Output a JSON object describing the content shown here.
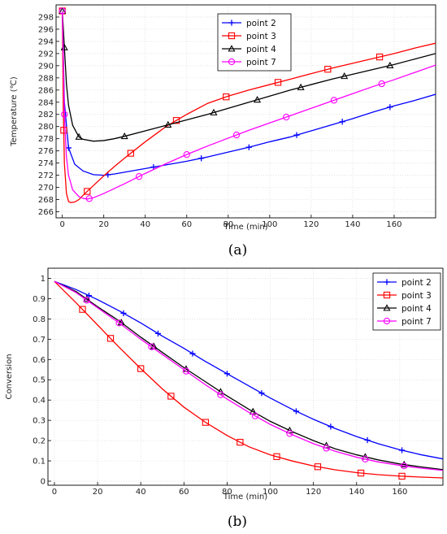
{
  "chart_data": [
    {
      "type": "line",
      "panel_label": "(a)",
      "xlabel": "Time (min)",
      "ylabel": "Temperature (℃)",
      "xlim": [
        -3,
        180
      ],
      "ylim": [
        265,
        300
      ],
      "xticks": [
        0,
        20,
        40,
        60,
        80,
        100,
        120,
        140,
        160
      ],
      "yticks": [
        266,
        268,
        270,
        272,
        274,
        276,
        278,
        280,
        282,
        284,
        286,
        288,
        290,
        292,
        294,
        296,
        298
      ],
      "legend_position": "top-center",
      "grid": true,
      "series": [
        {
          "name": "point 2",
          "color": "#0000ff",
          "marker": "plus",
          "x": [
            0,
            1,
            3,
            6,
            10,
            15,
            20,
            25,
            30,
            40,
            50,
            60,
            70,
            80,
            90,
            100,
            110,
            120,
            130,
            140,
            150,
            160,
            170,
            180
          ],
          "y": [
            299,
            284,
            276.5,
            273.8,
            272.7,
            272.1,
            272.0,
            272.2,
            272.5,
            273.1,
            273.7,
            274.3,
            275.0,
            275.8,
            276.6,
            277.5,
            278.3,
            279.3,
            280.3,
            281.3,
            282.4,
            283.4,
            284.3,
            285.3
          ],
          "marker_x": [
            3,
            22,
            44,
            67,
            90,
            113,
            135,
            158
          ]
        },
        {
          "name": "point 3",
          "color": "#ff0000",
          "marker": "square",
          "x": [
            0,
            0.5,
            1,
            2,
            3,
            4,
            6,
            8,
            10,
            15,
            20,
            25,
            30,
            40,
            50,
            60,
            70,
            80,
            90,
            100,
            110,
            120,
            130,
            140,
            150,
            160,
            170,
            180
          ],
          "y": [
            299,
            283,
            274,
            269,
            267.7,
            267.5,
            267.6,
            268.0,
            268.7,
            270.3,
            271.9,
            273.4,
            274.8,
            277.5,
            280.0,
            282.0,
            283.8,
            285.0,
            286.0,
            286.9,
            287.8,
            288.7,
            289.6,
            290.4,
            291.2,
            292.0,
            292.9,
            293.7
          ],
          "marker_x": [
            0,
            0.7,
            12,
            33,
            55,
            79,
            104,
            128,
            153
          ]
        },
        {
          "name": "point 4",
          "color": "#000000",
          "marker": "triangle",
          "x": [
            0,
            1,
            2,
            3,
            5,
            8,
            10,
            15,
            20,
            25,
            30,
            40,
            50,
            60,
            70,
            80,
            90,
            100,
            110,
            120,
            130,
            140,
            150,
            160,
            170,
            180
          ],
          "y": [
            299,
            293,
            287,
            283.5,
            280.2,
            278.3,
            277.9,
            277.6,
            277.7,
            278.0,
            278.4,
            279.3,
            280.2,
            281.1,
            282.0,
            283.0,
            284.0,
            285.0,
            286.0,
            286.9,
            287.8,
            288.6,
            289.4,
            290.2,
            291.1,
            292.0
          ],
          "marker_x": [
            0,
            1,
            8,
            30,
            51,
            73,
            94,
            115,
            136,
            158
          ]
        },
        {
          "name": "point 7",
          "color": "#ff00ff",
          "marker": "circle",
          "x": [
            0,
            0.5,
            1,
            2,
            3,
            5,
            8,
            10,
            12,
            15,
            20,
            25,
            30,
            40,
            50,
            60,
            70,
            80,
            90,
            100,
            110,
            120,
            130,
            140,
            150,
            160,
            170,
            180
          ],
          "y": [
            299,
            291,
            282,
            275,
            272,
            269.6,
            268.5,
            268.2,
            268.1,
            268.3,
            269.0,
            269.8,
            270.6,
            272.3,
            273.9,
            275.4,
            276.8,
            278.1,
            279.4,
            280.6,
            281.8,
            283.0,
            284.2,
            285.4,
            286.6,
            287.7,
            288.9,
            290.1
          ],
          "marker_x": [
            0,
            1,
            13,
            37,
            60,
            84,
            108,
            131,
            154
          ]
        }
      ]
    },
    {
      "type": "line",
      "panel_label": "(b)",
      "xlabel": "Time (min)",
      "ylabel": "Conversion",
      "xlim": [
        -3,
        180
      ],
      "ylim": [
        -0.02,
        1.05
      ],
      "xticks": [
        0,
        20,
        40,
        60,
        80,
        100,
        120,
        140,
        160
      ],
      "yticks": [
        0,
        0.1,
        0.2,
        0.3,
        0.4,
        0.5,
        0.6,
        0.7,
        0.8,
        0.9,
        1
      ],
      "legend_position": "top-right",
      "grid": true,
      "series": [
        {
          "name": "point 2",
          "color": "#0000ff",
          "marker": "plus",
          "x": [
            0,
            10,
            20,
            30,
            40,
            50,
            60,
            70,
            80,
            90,
            100,
            110,
            120,
            130,
            140,
            150,
            160,
            170,
            180
          ],
          "y": [
            0.985,
            0.945,
            0.895,
            0.84,
            0.78,
            0.715,
            0.655,
            0.59,
            0.53,
            0.47,
            0.41,
            0.355,
            0.305,
            0.26,
            0.22,
            0.185,
            0.155,
            0.13,
            0.11
          ],
          "marker_x": [
            16,
            32,
            48,
            64,
            80,
            96,
            112,
            128,
            145,
            161
          ]
        },
        {
          "name": "point 3",
          "color": "#ff0000",
          "marker": "square",
          "x": [
            0,
            10,
            20,
            30,
            40,
            50,
            60,
            70,
            80,
            90,
            100,
            110,
            120,
            130,
            140,
            150,
            160,
            170,
            180
          ],
          "y": [
            0.985,
            0.88,
            0.77,
            0.66,
            0.555,
            0.455,
            0.365,
            0.29,
            0.225,
            0.17,
            0.13,
            0.1,
            0.075,
            0.056,
            0.042,
            0.032,
            0.025,
            0.02,
            0.016
          ],
          "marker_x": [
            13,
            26,
            40,
            54,
            70,
            86,
            103,
            122,
            142,
            161
          ]
        },
        {
          "name": "point 4",
          "color": "#000000",
          "marker": "triangle",
          "x": [
            0,
            10,
            20,
            30,
            40,
            50,
            60,
            70,
            80,
            90,
            100,
            110,
            120,
            130,
            140,
            150,
            160,
            170,
            180
          ],
          "y": [
            0.985,
            0.935,
            0.86,
            0.79,
            0.71,
            0.635,
            0.56,
            0.49,
            0.42,
            0.355,
            0.295,
            0.245,
            0.2,
            0.16,
            0.13,
            0.105,
            0.085,
            0.07,
            0.057
          ],
          "marker_x": [
            15,
            31,
            46,
            61,
            77,
            92,
            109,
            126,
            144,
            162
          ]
        },
        {
          "name": "point 7",
          "color": "#ff00ff",
          "marker": "circle",
          "x": [
            0,
            10,
            20,
            30,
            40,
            50,
            60,
            70,
            80,
            90,
            100,
            110,
            120,
            130,
            140,
            150,
            160,
            170,
            180
          ],
          "y": [
            0.985,
            0.93,
            0.855,
            0.78,
            0.7,
            0.625,
            0.55,
            0.475,
            0.405,
            0.34,
            0.28,
            0.23,
            0.185,
            0.148,
            0.118,
            0.095,
            0.078,
            0.064,
            0.053
          ],
          "marker_x": [
            15,
            30,
            45,
            61,
            77,
            93,
            109,
            126,
            144,
            162
          ]
        }
      ]
    }
  ]
}
